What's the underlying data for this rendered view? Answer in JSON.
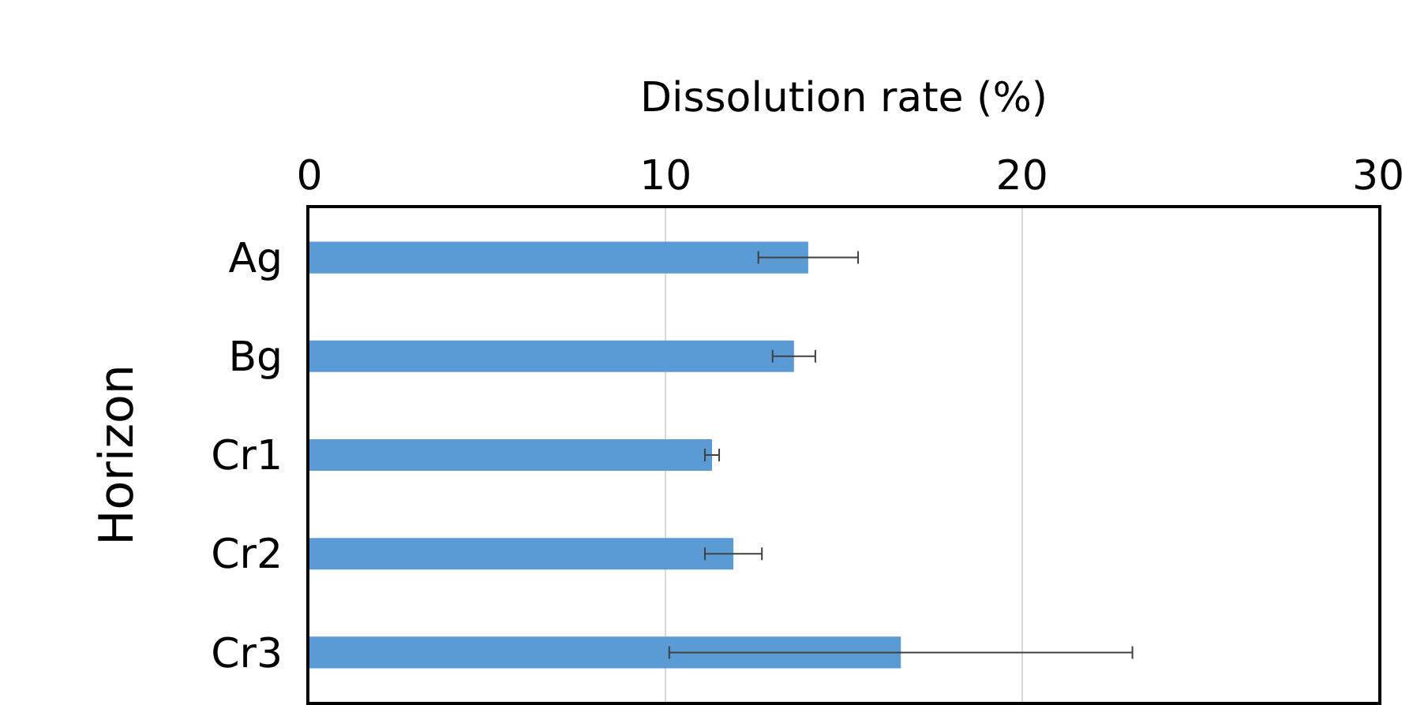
{
  "chart_data": {
    "type": "bar",
    "orientation": "horizontal",
    "xlabel": "Dissolution rate (%)",
    "ylabel": "Horizon",
    "categories": [
      "Ag",
      "Bg",
      "Cr1",
      "Cr2",
      "Cr3"
    ],
    "values": [
      14.0,
      13.6,
      11.3,
      11.9,
      16.6
    ],
    "errors": [
      1.4,
      0.6,
      0.2,
      0.8,
      6.5
    ],
    "color": "#5b9bd5",
    "xlim": [
      0,
      30
    ],
    "xticks": [
      0,
      10,
      20,
      30
    ],
    "grid": "x"
  }
}
